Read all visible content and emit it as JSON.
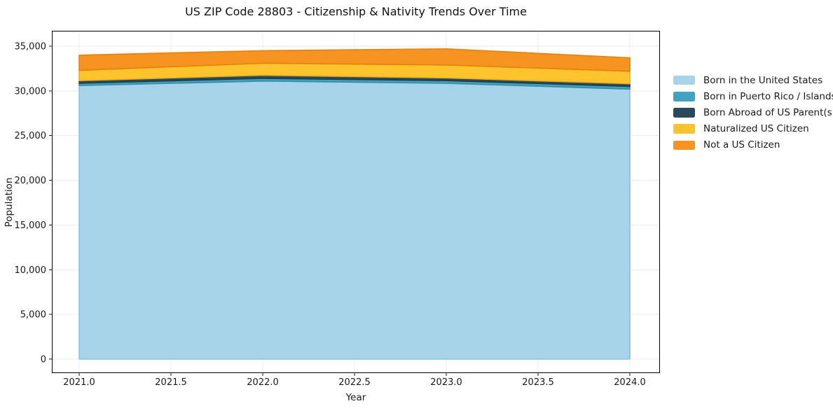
{
  "chart_data": {
    "type": "area",
    "stacked": true,
    "title": "US ZIP Code 28803 - Citizenship & Nativity Trends Over Time",
    "xlabel": "Year",
    "ylabel": "Population",
    "x": [
      2021,
      2022,
      2023,
      2024
    ],
    "series": [
      {
        "name": "Born in the United States",
        "values": [
          30600,
          31100,
          30850,
          30200
        ],
        "color": "#a6d3e8",
        "edge": "#8cc1db"
      },
      {
        "name": "Born in Puerto Rico / Islands",
        "values": [
          250,
          300,
          300,
          300
        ],
        "color": "#41a3c2",
        "edge": "#338bac"
      },
      {
        "name": "Born Abroad of US Parent(s)",
        "values": [
          300,
          350,
          300,
          300
        ],
        "color": "#28495e",
        "edge": "#203b4d"
      },
      {
        "name": "Naturalized US Citizen",
        "values": [
          1150,
          1350,
          1450,
          1400
        ],
        "color": "#fcc32d",
        "edge": "#edb013"
      },
      {
        "name": "Not a US Citizen",
        "values": [
          1700,
          1400,
          1800,
          1500
        ],
        "color": "#f79421",
        "edge": "#e2820d"
      }
    ],
    "totals": [
      34000,
      34500,
      34700,
      33700
    ],
    "xlim": [
      2020.851,
      2024.164
    ],
    "ylim": [
      -1566,
      36723
    ],
    "x_ticks": [
      {
        "value": 2021.0,
        "label": "2021.0"
      },
      {
        "value": 2021.5,
        "label": "2021.5"
      },
      {
        "value": 2022.0,
        "label": "2022.0"
      },
      {
        "value": 2022.5,
        "label": "2022.5"
      },
      {
        "value": 2023.0,
        "label": "2023.0"
      },
      {
        "value": 2023.5,
        "label": "2023.5"
      },
      {
        "value": 2024.0,
        "label": "2024.0"
      }
    ],
    "y_ticks": [
      {
        "value": 0,
        "label": "0"
      },
      {
        "value": 5000,
        "label": "5,000"
      },
      {
        "value": 10000,
        "label": "10,000"
      },
      {
        "value": 15000,
        "label": "15,000"
      },
      {
        "value": 20000,
        "label": "20,000"
      },
      {
        "value": 25000,
        "label": "25,000"
      },
      {
        "value": 30000,
        "label": "30,000"
      },
      {
        "value": 35000,
        "label": "35,000"
      }
    ],
    "grid": true,
    "grid_color": "#ebebeb",
    "legend_position": "right"
  }
}
